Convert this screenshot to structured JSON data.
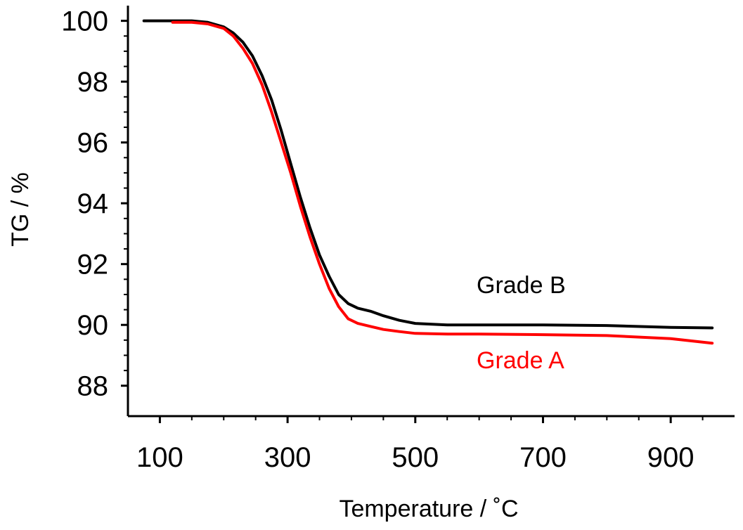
{
  "chart_data": {
    "type": "line",
    "title": "",
    "xlabel": "Temperature  /  ˚C",
    "ylabel": "TG / %",
    "xlim": [
      50,
      1000
    ],
    "ylim": [
      87,
      100.5
    ],
    "xticks": [
      100,
      300,
      500,
      700,
      900
    ],
    "yticks": [
      88,
      90,
      92,
      94,
      96,
      98,
      100
    ],
    "grid": false,
    "legend": "inline labels at right",
    "series": [
      {
        "name": "Grade B",
        "color": "#000000",
        "x": [
          75,
          120,
          150,
          175,
          200,
          215,
          230,
          245,
          260,
          275,
          290,
          305,
          320,
          335,
          350,
          365,
          380,
          395,
          410,
          430,
          450,
          475,
          500,
          550,
          600,
          700,
          800,
          900,
          965
        ],
        "y": [
          100.0,
          100.0,
          100.0,
          99.95,
          99.8,
          99.6,
          99.3,
          98.85,
          98.2,
          97.4,
          96.4,
          95.3,
          94.2,
          93.2,
          92.3,
          91.6,
          91.0,
          90.7,
          90.55,
          90.45,
          90.3,
          90.15,
          90.05,
          90.0,
          90.0,
          90.0,
          89.98,
          89.92,
          89.9
        ]
      },
      {
        "name": "Grade A",
        "color": "#ff0000",
        "x": [
          120,
          150,
          175,
          200,
          215,
          230,
          245,
          260,
          275,
          290,
          305,
          320,
          335,
          350,
          365,
          380,
          395,
          410,
          430,
          450,
          475,
          500,
          550,
          600,
          700,
          800,
          900,
          965
        ],
        "y": [
          99.95,
          99.95,
          99.9,
          99.75,
          99.5,
          99.1,
          98.6,
          97.9,
          97.0,
          96.0,
          95.0,
          93.9,
          92.9,
          92.0,
          91.2,
          90.6,
          90.2,
          90.05,
          89.95,
          89.85,
          89.78,
          89.72,
          89.7,
          89.7,
          89.68,
          89.65,
          89.55,
          89.4
        ]
      }
    ]
  }
}
